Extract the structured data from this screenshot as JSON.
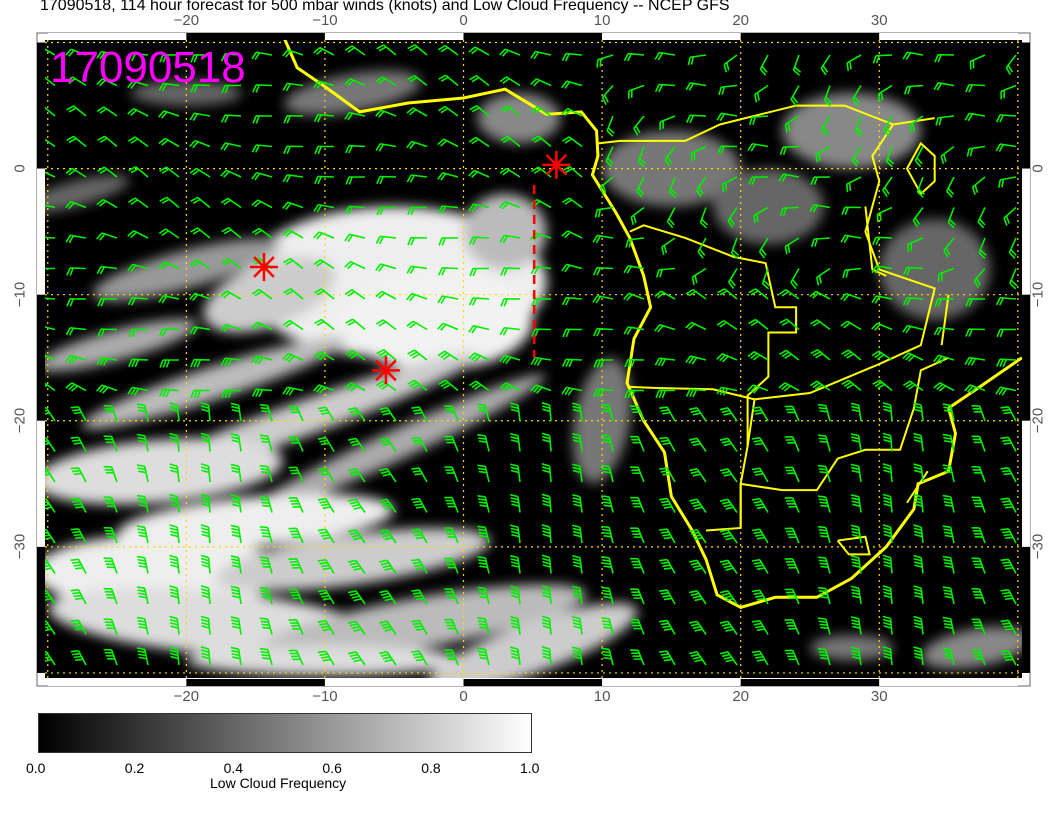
{
  "title": "17090518, 114 hour forecast for 500 mbar winds (knots) and Low Cloud Frequency -- NCEP GFS",
  "stamp": "17090518",
  "map": {
    "lon_range": [
      -30.2,
      40.3
    ],
    "lat_range": [
      -40.4,
      10.2
    ],
    "lon_ticks": [
      "−20",
      "−10",
      "0",
      "10",
      "20",
      "30"
    ],
    "lat_ticks": [
      "0",
      "−10",
      "−20",
      "−30"
    ],
    "coastline_color": "#ffff00",
    "barb_color": "#00ee00",
    "grid_color": "#ffd700",
    "markers": [
      {
        "lon": -14.4,
        "lat": -7.8
      },
      {
        "lon": -5.6,
        "lat": -16.0
      },
      {
        "lon": 6.7,
        "lat": 0.3
      }
    ],
    "marker_color": "#ff0000",
    "dashed_line": {
      "lon": 5.1,
      "lat_from": -1.3,
      "lat_to": -15.0
    }
  },
  "colorbar": {
    "labels": [
      "0.0",
      "0.2",
      "0.4",
      "0.6",
      "0.8",
      "1.0"
    ],
    "title": "Low Cloud Frequency",
    "range": [
      0,
      1
    ],
    "colormap": "black-to-white"
  }
}
